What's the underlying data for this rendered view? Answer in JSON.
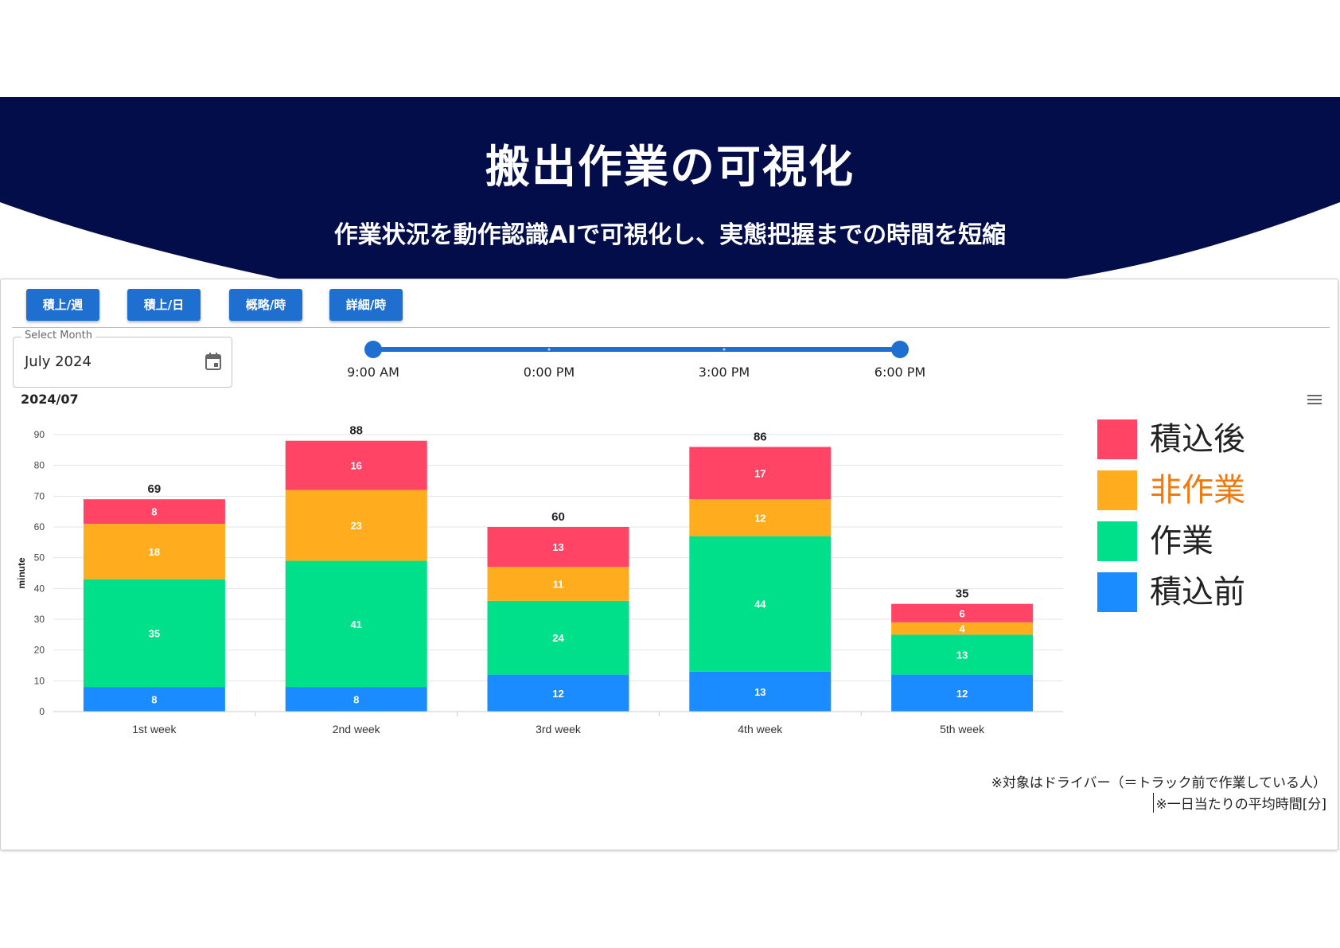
{
  "header": {
    "title": "搬出作業の可視化",
    "subtitle": "作業状況を動作認識AIで可視化し、実態把握までの時間を短縮",
    "background_color": "#020d4a"
  },
  "toolbar": {
    "buttons": [
      "積上/週",
      "積上/日",
      "概略/時",
      "詳細/時"
    ],
    "button_color": "#1f6fd0"
  },
  "month_picker": {
    "label": "Select Month",
    "value": "July 2024"
  },
  "time_slider": {
    "labels": [
      "9:00 AM",
      "0:00 PM",
      "3:00 PM",
      "6:00 PM"
    ],
    "range_start": "9:00 AM",
    "range_end": "6:00 PM"
  },
  "chart_data": {
    "type": "bar",
    "stacked": true,
    "title": "2024/07",
    "ylabel": "minute",
    "xlabel": "",
    "ylim": [
      0,
      90
    ],
    "yticks": [
      0,
      10,
      20,
      30,
      40,
      50,
      60,
      70,
      80,
      90
    ],
    "grid": true,
    "categories": [
      "1st week",
      "2nd week",
      "3rd week",
      "4th week",
      "5th week"
    ],
    "series": [
      {
        "name": "積込前",
        "color": "#1a8cff",
        "values": [
          8,
          8,
          12,
          13,
          12
        ]
      },
      {
        "name": "作業",
        "color": "#00e08a",
        "values": [
          35,
          41,
          24,
          44,
          13
        ]
      },
      {
        "name": "非作業",
        "color": "#ffad1f",
        "values": [
          18,
          23,
          11,
          12,
          4
        ]
      },
      {
        "name": "積込後",
        "color": "#ff4466",
        "values": [
          8,
          16,
          13,
          17,
          6
        ]
      }
    ],
    "totals": [
      69,
      88,
      60,
      86,
      35
    ],
    "legend_position": "right",
    "legend_order": [
      "積込後",
      "非作業",
      "作業",
      "積込前"
    ],
    "highlighted_legend": "非作業",
    "highlight_color": "#f07a10"
  },
  "notes": [
    "※対象はドライバー（＝トラック前で作業している人）",
    "※一日当たりの平均時間[分]"
  ]
}
